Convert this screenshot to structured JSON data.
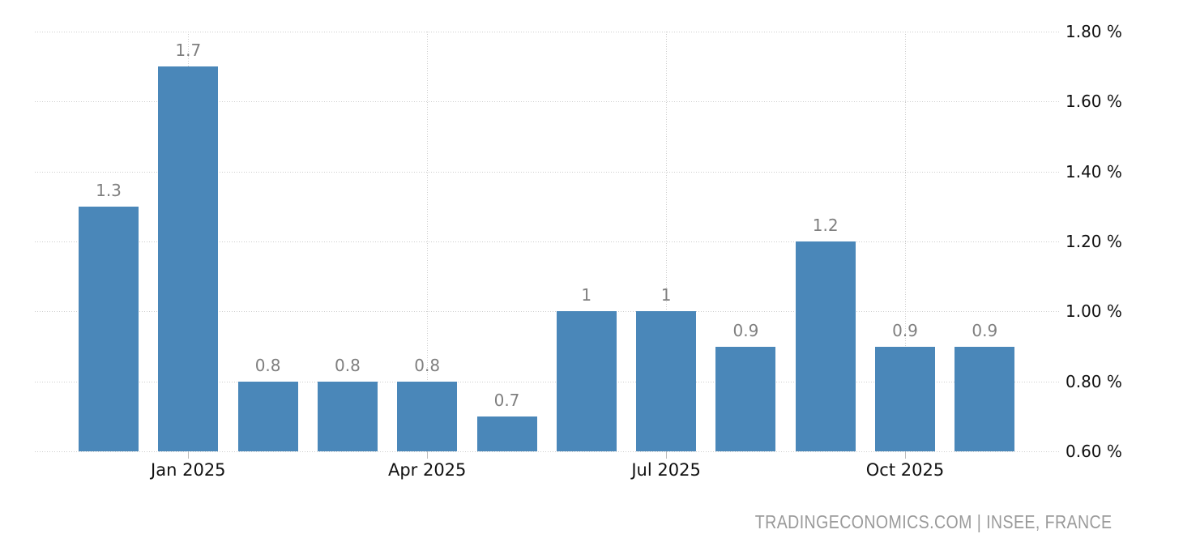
{
  "chart_data": {
    "type": "bar",
    "x_tick_labels": [
      "Jan 2025",
      "Apr 2025",
      "Jul 2025",
      "Oct 2025"
    ],
    "x_tick_bar_indices": [
      1,
      4,
      7,
      10
    ],
    "values": [
      1.3,
      1.7,
      0.8,
      0.8,
      0.8,
      0.7,
      1.0,
      1.0,
      0.9,
      1.2,
      0.9,
      0.9
    ],
    "value_labels": [
      "1.3",
      "1.7",
      "0.8",
      "0.8",
      "0.8",
      "0.7",
      "1",
      "1",
      "0.9",
      "1.2",
      "0.9",
      "0.9"
    ],
    "y_ticks": [
      {
        "value": 1.8,
        "label": "1.80 %"
      },
      {
        "value": 1.6,
        "label": "1.60 %"
      },
      {
        "value": 1.4,
        "label": "1.40 %"
      },
      {
        "value": 1.2,
        "label": "1.20 %"
      },
      {
        "value": 1.0,
        "label": "1.00 %"
      },
      {
        "value": 0.8,
        "label": "0.80 %"
      },
      {
        "value": 0.6,
        "label": "0.60 %"
      }
    ],
    "ylim": [
      0.6,
      1.8
    ],
    "grid": true,
    "legend": "none",
    "title": "",
    "xlabel": "",
    "ylabel": "",
    "colors": {
      "bar": "#4A87B9",
      "value_label": "#7f7f7f",
      "axis_label": "#111111",
      "gridline": "#cccccc"
    }
  },
  "attribution": {
    "text": "TRADINGECONOMICS.COM | INSEE, FRANCE",
    "color": "#9a9a9a"
  }
}
